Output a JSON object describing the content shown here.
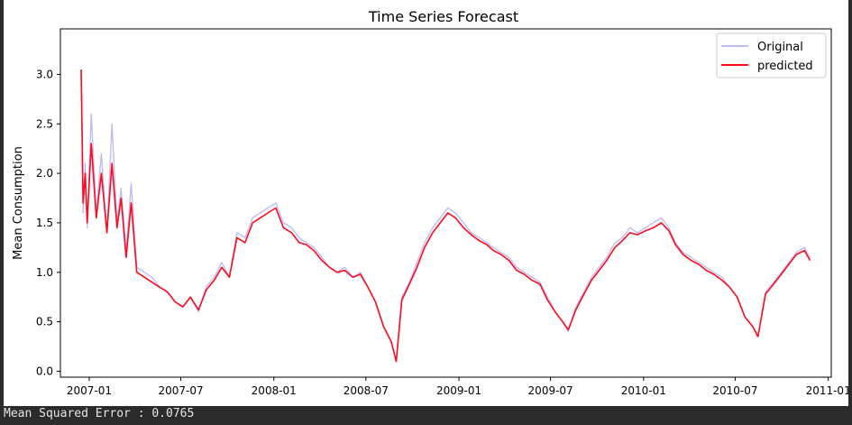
{
  "chart_data": {
    "type": "line",
    "title": "Time Series Forecast",
    "xlabel": "",
    "ylabel": "Mean Consumption",
    "x_range": [
      "2006-12-16",
      "2010-11-26"
    ],
    "xlim": [
      "2006-11-05",
      "2011-01-07"
    ],
    "ylim": [
      -0.06,
      3.46
    ],
    "x_ticks": [
      {
        "date": "2007-01-01",
        "label": "2007-01"
      },
      {
        "date": "2007-07-01",
        "label": "2007-07"
      },
      {
        "date": "2008-01-01",
        "label": "2008-01"
      },
      {
        "date": "2008-07-01",
        "label": "2008-07"
      },
      {
        "date": "2009-01-01",
        "label": "2009-01"
      },
      {
        "date": "2009-07-01",
        "label": "2009-07"
      },
      {
        "date": "2010-01-01",
        "label": "2010-01"
      },
      {
        "date": "2010-07-01",
        "label": "2010-07"
      },
      {
        "date": "2011-01-01",
        "label": "2011-01"
      }
    ],
    "y_ticks": [
      {
        "value": 0.0,
        "label": "0.0"
      },
      {
        "value": 0.5,
        "label": "0.5"
      },
      {
        "value": 1.0,
        "label": "1.0"
      },
      {
        "value": 1.5,
        "label": "1.5"
      },
      {
        "value": 2.0,
        "label": "2.0"
      },
      {
        "value": 2.5,
        "label": "2.5"
      },
      {
        "value": 3.0,
        "label": "3.0"
      }
    ],
    "grid": false,
    "legend_position": "top-right",
    "series": [
      {
        "name": "Original",
        "color": "#bdbdf5",
        "points": [
          [
            "2006-12-16",
            3.05
          ],
          [
            "2006-12-20",
            1.6
          ],
          [
            "2006-12-24",
            2.1
          ],
          [
            "2006-12-28",
            1.45
          ],
          [
            "2007-01-05",
            2.6
          ],
          [
            "2007-01-15",
            1.6
          ],
          [
            "2007-01-25",
            2.2
          ],
          [
            "2007-02-05",
            1.4
          ],
          [
            "2007-02-15",
            2.5
          ],
          [
            "2007-02-25",
            1.5
          ],
          [
            "2007-03-05",
            1.85
          ],
          [
            "2007-03-15",
            1.2
          ],
          [
            "2007-03-25",
            1.9
          ],
          [
            "2007-04-05",
            1.05
          ],
          [
            "2007-04-20",
            1.0
          ],
          [
            "2007-05-05",
            0.95
          ],
          [
            "2007-05-20",
            0.85
          ],
          [
            "2007-06-05",
            0.8
          ],
          [
            "2007-06-20",
            0.7
          ],
          [
            "2007-07-05",
            0.65
          ],
          [
            "2007-07-20",
            0.75
          ],
          [
            "2007-08-05",
            0.6
          ],
          [
            "2007-08-20",
            0.85
          ],
          [
            "2007-09-05",
            0.95
          ],
          [
            "2007-09-20",
            1.1
          ],
          [
            "2007-10-05",
            0.95
          ],
          [
            "2007-10-20",
            1.4
          ],
          [
            "2007-11-05",
            1.35
          ],
          [
            "2007-11-20",
            1.55
          ],
          [
            "2007-12-05",
            1.6
          ],
          [
            "2007-12-20",
            1.65
          ],
          [
            "2008-01-05",
            1.7
          ],
          [
            "2008-01-20",
            1.5
          ],
          [
            "2008-02-05",
            1.45
          ],
          [
            "2008-02-20",
            1.35
          ],
          [
            "2008-03-05",
            1.3
          ],
          [
            "2008-03-20",
            1.25
          ],
          [
            "2008-04-05",
            1.15
          ],
          [
            "2008-04-20",
            1.05
          ],
          [
            "2008-05-05",
            1.0
          ],
          [
            "2008-05-20",
            1.05
          ],
          [
            "2008-06-05",
            0.95
          ],
          [
            "2008-06-20",
            1.0
          ],
          [
            "2008-07-05",
            0.85
          ],
          [
            "2008-07-20",
            0.7
          ],
          [
            "2008-08-05",
            0.45
          ],
          [
            "2008-08-20",
            0.3
          ],
          [
            "2008-08-30",
            0.1
          ],
          [
            "2008-09-10",
            0.75
          ],
          [
            "2008-09-25",
            0.9
          ],
          [
            "2008-10-10",
            1.1
          ],
          [
            "2008-10-25",
            1.3
          ],
          [
            "2008-11-10",
            1.45
          ],
          [
            "2008-11-25",
            1.55
          ],
          [
            "2008-12-10",
            1.65
          ],
          [
            "2008-12-25",
            1.6
          ],
          [
            "2009-01-10",
            1.5
          ],
          [
            "2009-01-25",
            1.4
          ],
          [
            "2009-02-10",
            1.35
          ],
          [
            "2009-02-25",
            1.3
          ],
          [
            "2009-03-10",
            1.25
          ],
          [
            "2009-03-25",
            1.2
          ],
          [
            "2009-04-10",
            1.15
          ],
          [
            "2009-04-25",
            1.05
          ],
          [
            "2009-05-10",
            1.0
          ],
          [
            "2009-05-25",
            0.95
          ],
          [
            "2009-06-10",
            0.9
          ],
          [
            "2009-06-25",
            0.75
          ],
          [
            "2009-07-10",
            0.6
          ],
          [
            "2009-07-25",
            0.5
          ],
          [
            "2009-08-05",
            0.4
          ],
          [
            "2009-08-20",
            0.65
          ],
          [
            "2009-09-05",
            0.8
          ],
          [
            "2009-09-20",
            0.95
          ],
          [
            "2009-10-05",
            1.05
          ],
          [
            "2009-10-20",
            1.15
          ],
          [
            "2009-11-05",
            1.3
          ],
          [
            "2009-11-20",
            1.35
          ],
          [
            "2009-12-05",
            1.45
          ],
          [
            "2009-12-20",
            1.4
          ],
          [
            "2010-01-05",
            1.45
          ],
          [
            "2010-01-20",
            1.5
          ],
          [
            "2010-02-05",
            1.55
          ],
          [
            "2010-02-20",
            1.45
          ],
          [
            "2010-03-05",
            1.3
          ],
          [
            "2010-03-20",
            1.2
          ],
          [
            "2010-04-05",
            1.15
          ],
          [
            "2010-04-20",
            1.1
          ],
          [
            "2010-05-05",
            1.05
          ],
          [
            "2010-05-20",
            1.0
          ],
          [
            "2010-06-05",
            0.95
          ],
          [
            "2010-06-20",
            0.85
          ],
          [
            "2010-07-05",
            0.75
          ],
          [
            "2010-07-20",
            0.55
          ],
          [
            "2010-08-05",
            0.45
          ],
          [
            "2010-08-15",
            0.35
          ],
          [
            "2010-08-30",
            0.8
          ],
          [
            "2010-09-15",
            0.9
          ],
          [
            "2010-09-30",
            1.0
          ],
          [
            "2010-10-15",
            1.1
          ],
          [
            "2010-10-30",
            1.2
          ],
          [
            "2010-11-15",
            1.25
          ],
          [
            "2010-11-26",
            1.15
          ]
        ]
      },
      {
        "name": "predicted",
        "color": "#ff0a1e",
        "points": [
          [
            "2006-12-16",
            3.05
          ],
          [
            "2006-12-20",
            1.7
          ],
          [
            "2006-12-24",
            2.0
          ],
          [
            "2006-12-28",
            1.5
          ],
          [
            "2007-01-05",
            2.3
          ],
          [
            "2007-01-15",
            1.55
          ],
          [
            "2007-01-25",
            2.0
          ],
          [
            "2007-02-05",
            1.4
          ],
          [
            "2007-02-15",
            2.1
          ],
          [
            "2007-02-25",
            1.45
          ],
          [
            "2007-03-05",
            1.75
          ],
          [
            "2007-03-15",
            1.15
          ],
          [
            "2007-03-25",
            1.7
          ],
          [
            "2007-04-05",
            1.0
          ],
          [
            "2007-04-20",
            0.95
          ],
          [
            "2007-05-05",
            0.9
          ],
          [
            "2007-05-20",
            0.85
          ],
          [
            "2007-06-05",
            0.8
          ],
          [
            "2007-06-20",
            0.7
          ],
          [
            "2007-07-05",
            0.65
          ],
          [
            "2007-07-20",
            0.75
          ],
          [
            "2007-08-05",
            0.62
          ],
          [
            "2007-08-20",
            0.82
          ],
          [
            "2007-09-05",
            0.92
          ],
          [
            "2007-09-20",
            1.05
          ],
          [
            "2007-10-05",
            0.95
          ],
          [
            "2007-10-20",
            1.35
          ],
          [
            "2007-11-05",
            1.3
          ],
          [
            "2007-11-20",
            1.5
          ],
          [
            "2007-12-05",
            1.55
          ],
          [
            "2007-12-20",
            1.6
          ],
          [
            "2008-01-05",
            1.65
          ],
          [
            "2008-01-20",
            1.45
          ],
          [
            "2008-02-05",
            1.4
          ],
          [
            "2008-02-20",
            1.3
          ],
          [
            "2008-03-05",
            1.28
          ],
          [
            "2008-03-20",
            1.22
          ],
          [
            "2008-04-05",
            1.12
          ],
          [
            "2008-04-20",
            1.05
          ],
          [
            "2008-05-05",
            1.0
          ],
          [
            "2008-05-20",
            1.02
          ],
          [
            "2008-06-05",
            0.95
          ],
          [
            "2008-06-20",
            0.98
          ],
          [
            "2008-07-05",
            0.85
          ],
          [
            "2008-07-20",
            0.7
          ],
          [
            "2008-08-05",
            0.45
          ],
          [
            "2008-08-20",
            0.3
          ],
          [
            "2008-08-30",
            0.1
          ],
          [
            "2008-09-10",
            0.72
          ],
          [
            "2008-09-25",
            0.88
          ],
          [
            "2008-10-10",
            1.05
          ],
          [
            "2008-10-25",
            1.25
          ],
          [
            "2008-11-10",
            1.4
          ],
          [
            "2008-11-25",
            1.5
          ],
          [
            "2008-12-10",
            1.6
          ],
          [
            "2008-12-25",
            1.55
          ],
          [
            "2009-01-10",
            1.45
          ],
          [
            "2009-01-25",
            1.38
          ],
          [
            "2009-02-10",
            1.32
          ],
          [
            "2009-02-25",
            1.28
          ],
          [
            "2009-03-10",
            1.22
          ],
          [
            "2009-03-25",
            1.18
          ],
          [
            "2009-04-10",
            1.12
          ],
          [
            "2009-04-25",
            1.02
          ],
          [
            "2009-05-10",
            0.98
          ],
          [
            "2009-05-25",
            0.92
          ],
          [
            "2009-06-10",
            0.88
          ],
          [
            "2009-06-25",
            0.72
          ],
          [
            "2009-07-10",
            0.6
          ],
          [
            "2009-07-25",
            0.5
          ],
          [
            "2009-08-05",
            0.42
          ],
          [
            "2009-08-20",
            0.62
          ],
          [
            "2009-09-05",
            0.78
          ],
          [
            "2009-09-20",
            0.92
          ],
          [
            "2009-10-05",
            1.02
          ],
          [
            "2009-10-20",
            1.12
          ],
          [
            "2009-11-05",
            1.25
          ],
          [
            "2009-11-20",
            1.32
          ],
          [
            "2009-12-05",
            1.4
          ],
          [
            "2009-12-20",
            1.38
          ],
          [
            "2010-01-05",
            1.42
          ],
          [
            "2010-01-20",
            1.45
          ],
          [
            "2010-02-05",
            1.5
          ],
          [
            "2010-02-20",
            1.42
          ],
          [
            "2010-03-05",
            1.28
          ],
          [
            "2010-03-20",
            1.18
          ],
          [
            "2010-04-05",
            1.12
          ],
          [
            "2010-04-20",
            1.08
          ],
          [
            "2010-05-05",
            1.02
          ],
          [
            "2010-05-20",
            0.98
          ],
          [
            "2010-06-05",
            0.92
          ],
          [
            "2010-06-20",
            0.85
          ],
          [
            "2010-07-05",
            0.75
          ],
          [
            "2010-07-20",
            0.55
          ],
          [
            "2010-08-05",
            0.45
          ],
          [
            "2010-08-15",
            0.35
          ],
          [
            "2010-08-30",
            0.78
          ],
          [
            "2010-09-15",
            0.88
          ],
          [
            "2010-09-30",
            0.98
          ],
          [
            "2010-10-15",
            1.08
          ],
          [
            "2010-10-30",
            1.18
          ],
          [
            "2010-11-15",
            1.22
          ],
          [
            "2010-11-26",
            1.12
          ]
        ]
      }
    ]
  },
  "console": {
    "line": "Mean Squared Error : 0.0765"
  }
}
